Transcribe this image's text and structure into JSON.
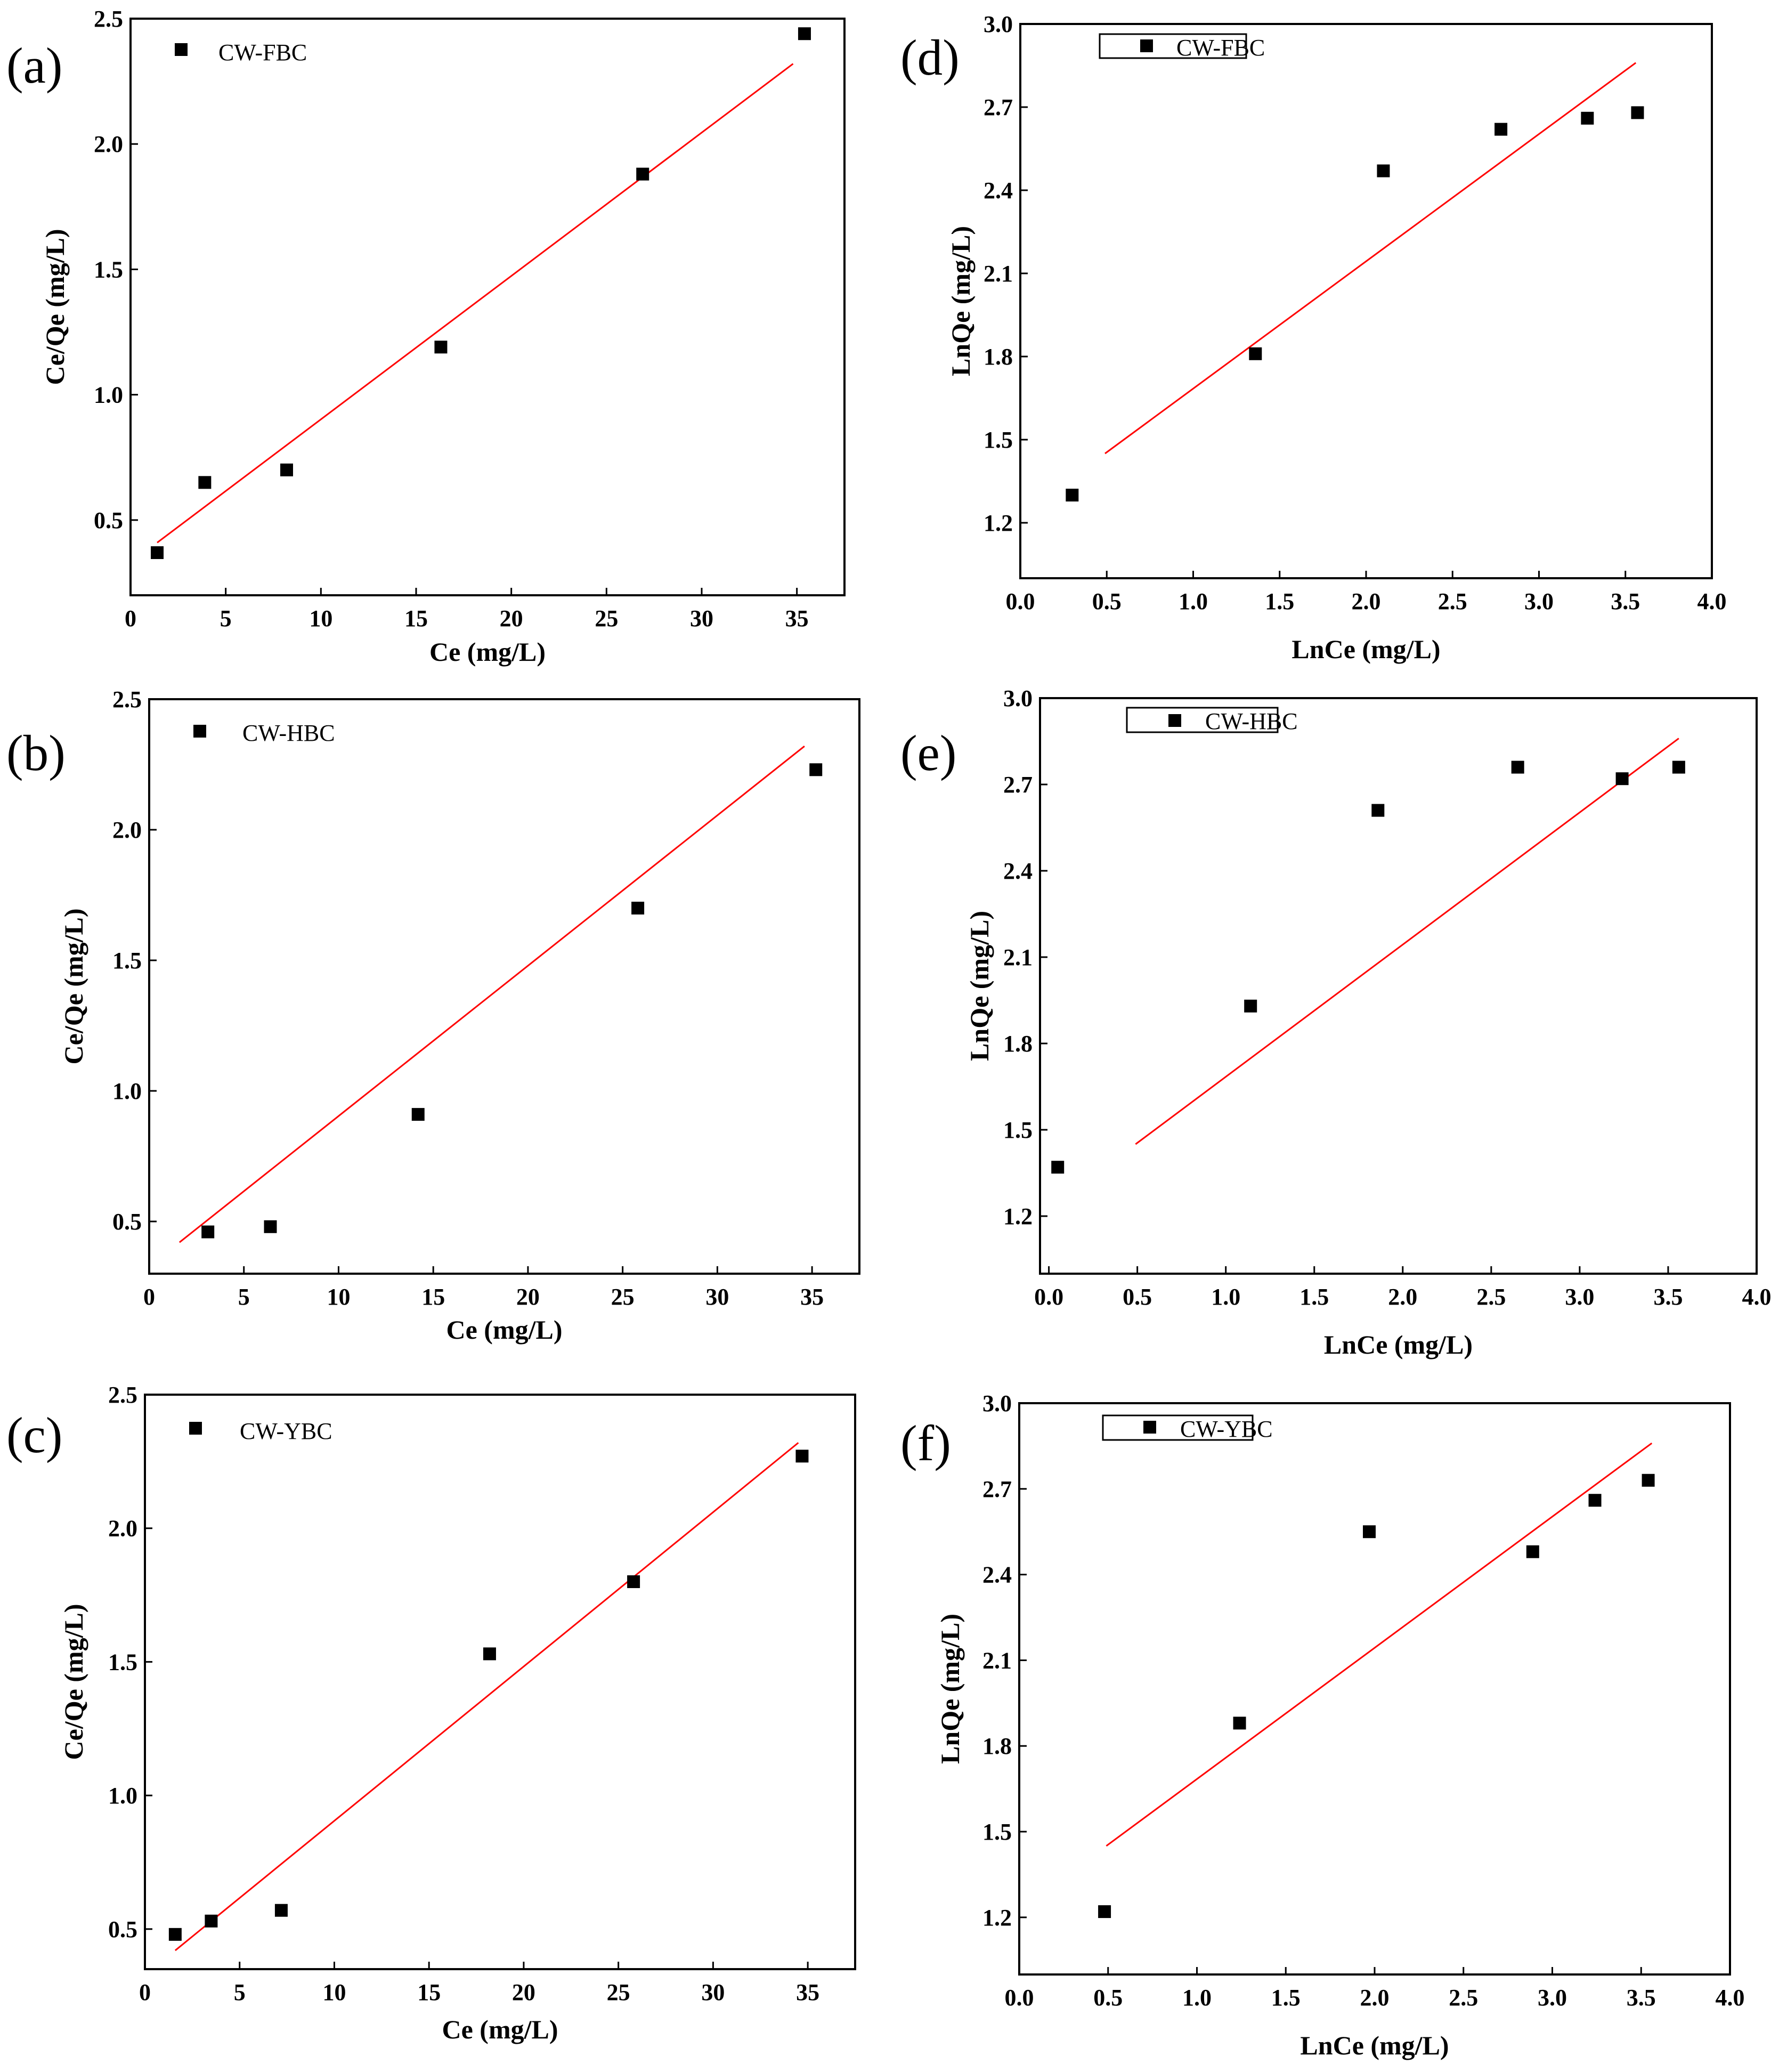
{
  "chart_data": [
    {
      "id": "a",
      "panel_label": "(a)",
      "type": "scatter",
      "xlabel": "Ce (mg/L)",
      "ylabel": "Ce/Qe (mg/L)",
      "xlim": [
        0,
        37.5
      ],
      "ylim": [
        0.2,
        2.5
      ],
      "xticks": [
        0,
        5,
        10,
        15,
        20,
        25,
        30,
        35
      ],
      "xtick_labels": [
        "0",
        "5",
        "10",
        "15",
        "20",
        "25",
        "30",
        "35"
      ],
      "yticks": [
        0.5,
        1.0,
        1.5,
        2.0,
        2.5
      ],
      "ytick_labels": [
        "0.5",
        "1.0",
        "1.5",
        "2.0",
        "2.5"
      ],
      "legend": {
        "label": "CW-FBC",
        "boxed": false,
        "placement": "top-left"
      },
      "series": [
        {
          "name": "CW-FBC",
          "x": [
            1.4,
            3.9,
            8.2,
            16.3,
            26.9,
            35.4
          ],
          "y": [
            0.37,
            0.65,
            0.7,
            1.19,
            1.88,
            2.44
          ]
        }
      ],
      "fit": {
        "x": [
          1.4,
          34.8
        ],
        "y": [
          0.41,
          2.32
        ]
      }
    },
    {
      "id": "b",
      "panel_label": "(b)",
      "type": "scatter",
      "xlabel": "Ce (mg/L)",
      "ylabel": "Ce/Qe (mg/L)",
      "xlim": [
        0,
        37.5
      ],
      "ylim": [
        0.3,
        2.5
      ],
      "xticks": [
        0,
        5,
        10,
        15,
        20,
        25,
        30,
        35
      ],
      "xtick_labels": [
        "0",
        "5",
        "10",
        "15",
        "20",
        "25",
        "30",
        "35"
      ],
      "yticks": [
        0.5,
        1.0,
        1.5,
        2.0,
        2.5
      ],
      "ytick_labels": [
        "0.5",
        "1.0",
        "1.5",
        "2.0",
        "2.5"
      ],
      "legend": {
        "label": "CW-HBC",
        "boxed": false,
        "placement": "top-left"
      },
      "series": [
        {
          "name": "CW-HBC",
          "x": [
            3.1,
            6.4,
            14.2,
            25.8,
            35.2
          ],
          "y": [
            0.46,
            0.48,
            0.91,
            1.7,
            2.23
          ]
        }
      ],
      "fit": {
        "x": [
          1.6,
          34.6
        ],
        "y": [
          0.42,
          2.32
        ]
      }
    },
    {
      "id": "c",
      "panel_label": "(c)",
      "type": "scatter",
      "xlabel": "Ce (mg/L)",
      "ylabel": "Ce/Qe (mg/L)",
      "xlim": [
        0,
        37.5
      ],
      "ylim": [
        0.35,
        2.5
      ],
      "xticks": [
        0,
        5,
        10,
        15,
        20,
        25,
        30,
        35
      ],
      "xtick_labels": [
        "0",
        "5",
        "10",
        "15",
        "20",
        "25",
        "30",
        "35"
      ],
      "yticks": [
        0.5,
        1.0,
        1.5,
        2.0,
        2.5
      ],
      "ytick_labels": [
        "0.5",
        "1.0",
        "1.5",
        "2.0",
        "2.5"
      ],
      "legend": {
        "label": "CW-YBC",
        "boxed": false,
        "placement": "top-left"
      },
      "series": [
        {
          "name": "CW-YBC",
          "x": [
            1.6,
            3.5,
            7.2,
            18.2,
            25.8,
            34.7
          ],
          "y": [
            0.48,
            0.53,
            0.57,
            1.53,
            1.8,
            2.27
          ]
        }
      ],
      "fit": {
        "x": [
          1.6,
          34.5
        ],
        "y": [
          0.42,
          2.32
        ]
      }
    },
    {
      "id": "d",
      "panel_label": "(d)",
      "type": "scatter",
      "xlabel": "LnCe (mg/L)",
      "ylabel": "LnQe (mg/L)",
      "xlim": [
        0.0,
        4.0
      ],
      "ylim": [
        1.0,
        3.0
      ],
      "xticks": [
        0.0,
        0.5,
        1.0,
        1.5,
        2.0,
        2.5,
        3.0,
        3.5,
        4.0
      ],
      "xtick_labels": [
        "0.0",
        "0.5",
        "1.0",
        "1.5",
        "2.0",
        "2.5",
        "3.0",
        "3.5",
        "4.0"
      ],
      "yticks": [
        1.2,
        1.5,
        1.8,
        2.1,
        2.4,
        2.7,
        3.0
      ],
      "ytick_labels": [
        "1.2",
        "1.5",
        "1.8",
        "2.1",
        "2.4",
        "2.7",
        "3.0"
      ],
      "legend": {
        "label": "CW-FBC",
        "boxed": true,
        "placement": "top-left"
      },
      "series": [
        {
          "name": "CW-FBC",
          "x": [
            0.3,
            1.36,
            2.1,
            2.78,
            3.28,
            3.57
          ],
          "y": [
            1.3,
            1.81,
            2.47,
            2.62,
            2.66,
            2.68
          ]
        }
      ],
      "fit": {
        "x": [
          0.49,
          3.56
        ],
        "y": [
          1.45,
          2.86
        ]
      }
    },
    {
      "id": "e",
      "panel_label": "(e)",
      "type": "scatter",
      "xlabel": "LnCe (mg/L)",
      "ylabel": "LnQe (mg/L)",
      "xlim": [
        -0.05,
        4.0
      ],
      "ylim": [
        1.0,
        3.0
      ],
      "xticks": [
        0.0,
        0.5,
        1.0,
        1.5,
        2.0,
        2.5,
        3.0,
        3.5,
        4.0
      ],
      "xtick_labels": [
        "0.0",
        "0.5",
        "1.0",
        "1.5",
        "2.0",
        "2.5",
        "3.0",
        "3.5",
        "4.0"
      ],
      "yticks": [
        1.2,
        1.5,
        1.8,
        2.1,
        2.4,
        2.7,
        3.0
      ],
      "ytick_labels": [
        "1.2",
        "1.5",
        "1.8",
        "2.1",
        "2.4",
        "2.7",
        "3.0"
      ],
      "legend": {
        "label": "CW-HBC",
        "boxed": true,
        "placement": "top-left"
      },
      "series": [
        {
          "name": "CW-HBC",
          "x": [
            0.05,
            1.14,
            1.86,
            2.65,
            3.24,
            3.56
          ],
          "y": [
            1.37,
            1.93,
            2.61,
            2.76,
            2.72,
            2.76
          ]
        }
      ],
      "fit": {
        "x": [
          0.49,
          3.56
        ],
        "y": [
          1.45,
          2.86
        ]
      }
    },
    {
      "id": "f",
      "panel_label": "(f)",
      "type": "scatter",
      "xlabel": "LnCe (mg/L)",
      "ylabel": "LnQe (mg/L)",
      "xlim": [
        0.0,
        4.0
      ],
      "ylim": [
        1.0,
        3.0
      ],
      "xticks": [
        0.0,
        0.5,
        1.0,
        1.5,
        2.0,
        2.5,
        3.0,
        3.5,
        4.0
      ],
      "xtick_labels": [
        "0.0",
        "0.5",
        "1.0",
        "1.5",
        "2.0",
        "2.5",
        "3.0",
        "3.5",
        "4.0"
      ],
      "yticks": [
        1.2,
        1.5,
        1.8,
        2.1,
        2.4,
        2.7,
        3.0
      ],
      "ytick_labels": [
        "1.2",
        "1.5",
        "1.8",
        "2.1",
        "2.4",
        "2.7",
        "3.0"
      ],
      "legend": {
        "label": "CW-YBC",
        "boxed": true,
        "placement": "top-left"
      },
      "series": [
        {
          "name": "CW-YBC",
          "x": [
            0.48,
            1.24,
            1.97,
            2.89,
            3.24,
            3.54
          ],
          "y": [
            1.22,
            1.88,
            2.55,
            2.48,
            2.66,
            2.73
          ]
        }
      ],
      "fit": {
        "x": [
          0.49,
          3.56
        ],
        "y": [
          1.45,
          2.86
        ]
      }
    }
  ]
}
